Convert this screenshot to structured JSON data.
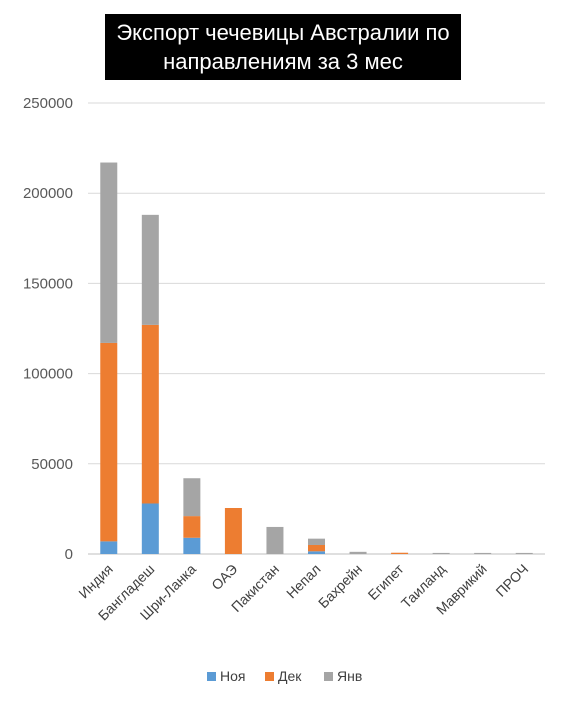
{
  "chart_data": {
    "type": "bar",
    "stacked": true,
    "title_lines": [
      "Экспорт чечевицы Австралии по",
      "направлениям за 3 мес"
    ],
    "categories": [
      "Индия",
      "Бангладеш",
      "Шри-Ланка",
      "ОАЭ",
      "Пакистан",
      "Непал",
      "Бахрейн",
      "Египет",
      "Таиланд",
      "Маврикий",
      "ПРОЧ"
    ],
    "series": [
      {
        "name": "Ноя",
        "color": "#5B9BD5",
        "values": [
          7000,
          28000,
          9000,
          0,
          0,
          1500,
          0,
          0,
          0,
          0,
          0
        ]
      },
      {
        "name": "Дек",
        "color": "#ED7D31",
        "values": [
          110000,
          99000,
          12000,
          25500,
          0,
          3500,
          0,
          700,
          0,
          0,
          0
        ]
      },
      {
        "name": "Янв",
        "color": "#A5A5A5",
        "values": [
          100000,
          61000,
          21000,
          0,
          15000,
          3500,
          1200,
          0,
          600,
          600,
          600
        ]
      }
    ],
    "y_ticks": [
      "0",
      "50000",
      "100000",
      "150000",
      "200000",
      "250000"
    ],
    "ylim": [
      0,
      250000
    ],
    "grid": true,
    "legend_position": "bottom"
  }
}
